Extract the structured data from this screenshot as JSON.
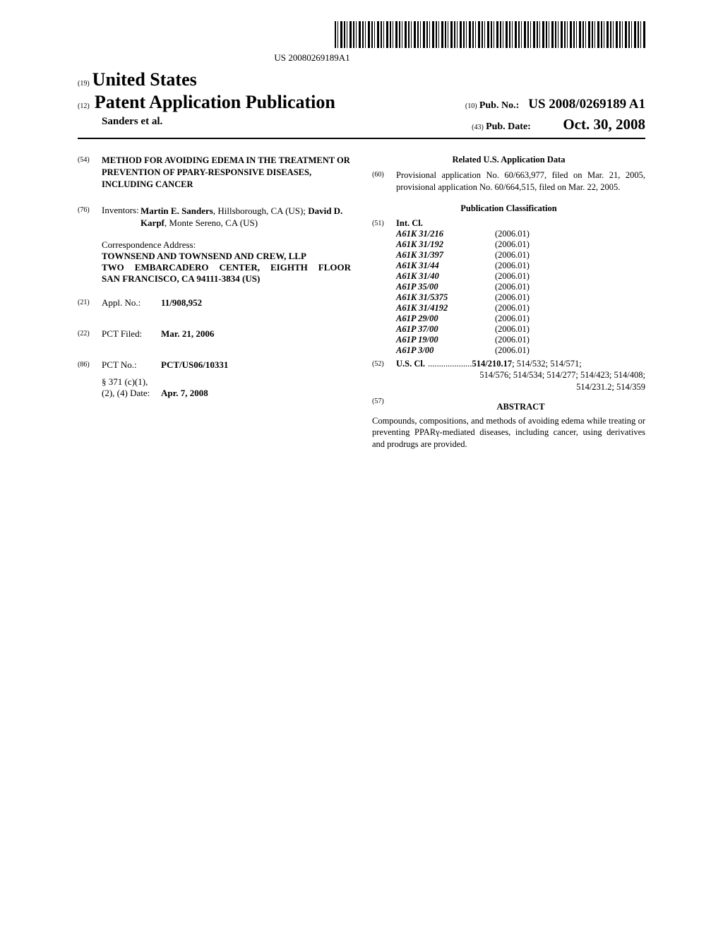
{
  "barcode_text": "US 20080269189A1",
  "header": {
    "country_num": "(19)",
    "country": "United States",
    "kind_num": "(12)",
    "kind": "Patent Application Publication",
    "pubno_num": "(10)",
    "pubno_label": "Pub. No.:",
    "pubno_value": "US 2008/0269189 A1",
    "authors": "Sanders et al.",
    "pubdate_num": "(43)",
    "pubdate_label": "Pub. Date:",
    "pubdate_value": "Oct. 30, 2008"
  },
  "left": {
    "title_num": "(54)",
    "title": "METHOD FOR AVOIDING EDEMA IN THE TREATMENT OR PREVENTION OF PPARY-RESPONSIVE DISEASES, INCLUDING CANCER",
    "inventors_num": "(76)",
    "inventors_label": "Inventors:",
    "inventors_html": "Martin E. Sanders, Hillsborough, CA (US); David D. Karpf, Monte Sereno, CA (US)",
    "inventor1_bold": "Martin E. Sanders",
    "inventor1_rest": ", Hillsborough, CA (US); ",
    "inventor2_bold": "David D. Karpf",
    "inventor2_rest": ", Monte Sereno, CA (US)",
    "corr_head": "Correspondence Address:",
    "corr_name": "TOWNSEND AND TOWNSEND AND CREW, LLP",
    "corr_addr1": "TWO EMBARCADERO CENTER, EIGHTH FLOOR",
    "corr_addr2": "SAN FRANCISCO, CA 94111-3834 (US)",
    "applno_num": "(21)",
    "applno_label": "Appl. No.:",
    "applno_value": "11/908,952",
    "pctfiled_num": "(22)",
    "pctfiled_label": "PCT Filed:",
    "pctfiled_value": "Mar. 21, 2006",
    "pctno_num": "(86)",
    "pctno_label": "PCT No.:",
    "pctno_value": "PCT/US06/10331",
    "s371_label1": "§ 371 (c)(1),",
    "s371_label2": "(2), (4) Date:",
    "s371_value": "Apr. 7, 2008"
  },
  "right": {
    "related_head": "Related U.S. Application Data",
    "related_num": "(60)",
    "related_text": "Provisional application No. 60/663,977, filed on Mar. 21, 2005, provisional application No. 60/664,515, filed on Mar. 22, 2005.",
    "pubclass_head": "Publication Classification",
    "intcl_num": "(51)",
    "intcl_label": "Int. Cl.",
    "intcl": [
      {
        "code": "A61K 31/216",
        "year": "(2006.01)"
      },
      {
        "code": "A61K 31/192",
        "year": "(2006.01)"
      },
      {
        "code": "A61K 31/397",
        "year": "(2006.01)"
      },
      {
        "code": "A61K 31/44",
        "year": "(2006.01)"
      },
      {
        "code": "A61K 31/40",
        "year": "(2006.01)"
      },
      {
        "code": "A61P 35/00",
        "year": "(2006.01)"
      },
      {
        "code": "A61K 31/5375",
        "year": "(2006.01)"
      },
      {
        "code": "A61K 31/4192",
        "year": "(2006.01)"
      },
      {
        "code": "A61P 29/00",
        "year": "(2006.01)"
      },
      {
        "code": "A61P 37/00",
        "year": "(2006.01)"
      },
      {
        "code": "A61P 19/00",
        "year": "(2006.01)"
      },
      {
        "code": "A61P 3/00",
        "year": "(2006.01)"
      }
    ],
    "uscl_num": "(52)",
    "uscl_label": "U.S. Cl.",
    "uscl_first": "514/210.17",
    "uscl_rest1": "; 514/532; 514/571;",
    "uscl_line2": "514/576; 514/534; 514/277; 514/423; 514/408;",
    "uscl_line3": "514/231.2; 514/359",
    "abstract_num": "(57)",
    "abstract_head": "ABSTRACT",
    "abstract_text": "Compounds, compositions, and methods of avoiding edema while treating or preventing PPARγ-mediated diseases, including cancer, using derivatives and prodrugs are provided."
  }
}
